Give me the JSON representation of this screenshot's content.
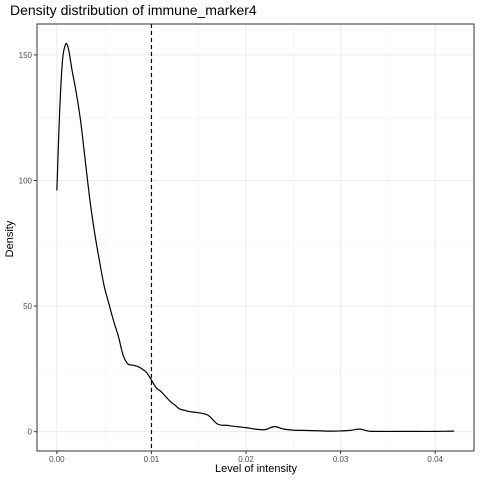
{
  "chart_data": {
    "type": "line",
    "title": "Density distribution of immune_marker4",
    "xlabel": "Level of intensity",
    "ylabel": "Density",
    "xlim": [
      -0.0021,
      0.0441
    ],
    "ylim": [
      -7.7,
      162.3
    ],
    "x_ticks": [
      0.0,
      0.01,
      0.02,
      0.03,
      0.04
    ],
    "x_tick_labels": [
      "0.00",
      "0.01",
      "0.02",
      "0.03",
      "0.04"
    ],
    "y_ticks": [
      0,
      50,
      100,
      150
    ],
    "y_tick_labels": [
      "0",
      "50",
      "100",
      "150"
    ],
    "grid": true,
    "vline": {
      "x": 0.01,
      "style": "dashed"
    },
    "series": [
      {
        "x": [
          0.0,
          0.0003,
          0.0006,
          0.0009,
          0.0011,
          0.0013,
          0.0016,
          0.002,
          0.0025,
          0.003,
          0.0035,
          0.004,
          0.0045,
          0.005,
          0.0055,
          0.006,
          0.0065,
          0.007,
          0.0075,
          0.008,
          0.0085,
          0.009,
          0.0095,
          0.01,
          0.0105,
          0.011,
          0.0115,
          0.012,
          0.0125,
          0.013,
          0.0135,
          0.014,
          0.015,
          0.016,
          0.017,
          0.018,
          0.019,
          0.02,
          0.021,
          0.022,
          0.023,
          0.024,
          0.025,
          0.026,
          0.027,
          0.028,
          0.029,
          0.03,
          0.031,
          0.032,
          0.033,
          0.034,
          0.036,
          0.038,
          0.04,
          0.042
        ],
        "y": [
          96,
          128,
          148,
          154,
          154,
          151,
          144,
          136,
          124,
          108,
          92,
          79,
          68,
          58,
          51,
          44,
          38,
          30.5,
          27,
          26.5,
          26,
          25,
          23.5,
          20.5,
          17.5,
          16,
          14,
          12,
          10.5,
          9,
          8.5,
          8,
          7.5,
          6.5,
          3,
          2.5,
          2.0,
          1.6,
          1.0,
          0.8,
          2.0,
          1.0,
          0.6,
          0.5,
          0.4,
          0.3,
          0.2,
          0.3,
          0.5,
          1.0,
          0.2,
          0.1,
          0.1,
          0.1,
          0.1,
          0.2
        ]
      }
    ],
    "colors": {
      "line": "#000000",
      "panel_border": "#333333",
      "grid_major": "#ebebeb",
      "grid_minor": "#f5f5f5",
      "tick_label": "#4d4d4d"
    }
  }
}
